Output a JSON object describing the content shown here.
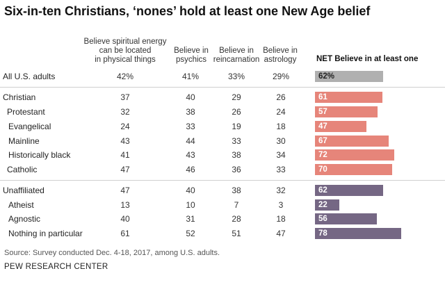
{
  "title": "Six-in-ten Christians, ‘nones’ hold at least one New Age belief",
  "columns": {
    "spiritual_energy_lines": [
      "Believe spiritual energy",
      "can be located",
      "in physical things"
    ],
    "psychics_lines": [
      "Believe in",
      "psychics"
    ],
    "reincarnation_lines": [
      "Believe in",
      "reincarnation"
    ],
    "astrology_lines": [
      "Believe in",
      "astrology"
    ],
    "net": "NET Believe in at least one"
  },
  "colors": {
    "all": "#b0b0b0",
    "christian": "#e6857a",
    "unaffiliated": "#756784",
    "net_label_all": "#222222"
  },
  "chart_data": {
    "type": "table",
    "title": "Six-in-ten Christians, ‘nones’ hold at least one New Age belief",
    "columns": [
      "Believe spiritual energy can be located in physical things",
      "Believe in psychics",
      "Believe in reincarnation",
      "Believe in astrology",
      "NET Believe in at least one"
    ],
    "rows": [
      {
        "label": "All U.S. adults",
        "group": "all",
        "values": [
          "42%",
          "41%",
          "33%",
          "29%"
        ],
        "net": 62,
        "net_label": "62%"
      },
      {
        "label": "Christian",
        "group": "christian",
        "values": [
          "37",
          "40",
          "29",
          "26"
        ],
        "net": 61,
        "net_label": "61"
      },
      {
        "label": "Protestant",
        "group": "christian",
        "values": [
          "32",
          "38",
          "26",
          "24"
        ],
        "net": 57,
        "net_label": "57"
      },
      {
        "label": "Evangelical",
        "group": "christian",
        "values": [
          "24",
          "33",
          "19",
          "18"
        ],
        "net": 47,
        "net_label": "47"
      },
      {
        "label": "Mainline",
        "group": "christian",
        "values": [
          "43",
          "44",
          "33",
          "30"
        ],
        "net": 67,
        "net_label": "67"
      },
      {
        "label": "Historically black",
        "group": "christian",
        "values": [
          "41",
          "43",
          "38",
          "34"
        ],
        "net": 72,
        "net_label": "72"
      },
      {
        "label": "Catholic",
        "group": "christian",
        "values": [
          "47",
          "46",
          "36",
          "33"
        ],
        "net": 70,
        "net_label": "70"
      },
      {
        "label": "Unaffiliated",
        "group": "unaffiliated",
        "values": [
          "47",
          "40",
          "38",
          "32"
        ],
        "net": 62,
        "net_label": "62"
      },
      {
        "label": "Atheist",
        "group": "unaffiliated",
        "values": [
          "13",
          "10",
          "7",
          "3"
        ],
        "net": 22,
        "net_label": "22"
      },
      {
        "label": "Agnostic",
        "group": "unaffiliated",
        "values": [
          "40",
          "31",
          "28",
          "18"
        ],
        "net": 56,
        "net_label": "56"
      },
      {
        "label": "Nothing in particular",
        "group": "unaffiliated",
        "values": [
          "61",
          "52",
          "51",
          "47"
        ],
        "net": 78,
        "net_label": "78"
      }
    ]
  },
  "source": "Source: Survey conducted Dec. 4-18, 2017, among U.S. adults.",
  "org": "PEW RESEARCH CENTER"
}
